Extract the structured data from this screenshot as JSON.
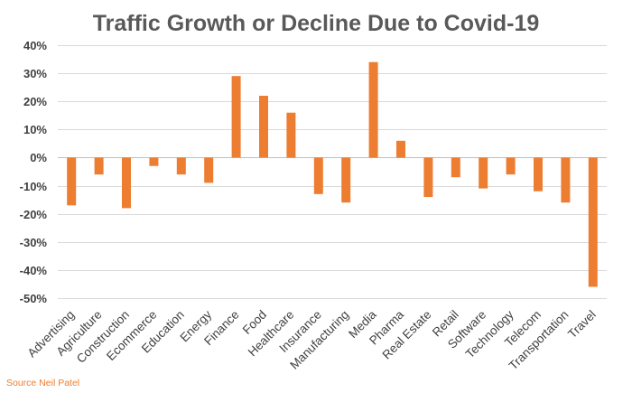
{
  "chart_data": {
    "type": "bar",
    "title": "Traffic Growth or Decline Due to Covid-19",
    "xlabel": "",
    "ylabel": "",
    "categories": [
      "Advertising",
      "Agriculture",
      "Construction",
      "Ecommerce",
      "Education",
      "Energy",
      "Finance",
      "Food",
      "Healthcare",
      "Insurance",
      "Manufacturing",
      "Media",
      "Pharma",
      "Real Estate",
      "Retail",
      "Software",
      "Technology",
      "Telecom",
      "Transportation",
      "Travel"
    ],
    "values": [
      -17,
      -6,
      -18,
      -3,
      -6,
      -9,
      29,
      22,
      16,
      -13,
      -16,
      34,
      6,
      -14,
      -7,
      -11,
      -6,
      -12,
      -16,
      -46
    ],
    "unit": "%",
    "ylim": [
      -50,
      40
    ],
    "yticks": [
      40,
      30,
      20,
      10,
      0,
      -10,
      -20,
      -30,
      -40,
      -50
    ],
    "ytick_labels": [
      "40%",
      "30%",
      "20%",
      "10%",
      "0%",
      "-10%",
      "-20%",
      "-30%",
      "-40%",
      "-50%"
    ],
    "grid": true,
    "legend": "none",
    "bar_color": "#ED7D31",
    "grid_color": "#D9D9D9"
  },
  "source_note": "Source Neil Patel"
}
